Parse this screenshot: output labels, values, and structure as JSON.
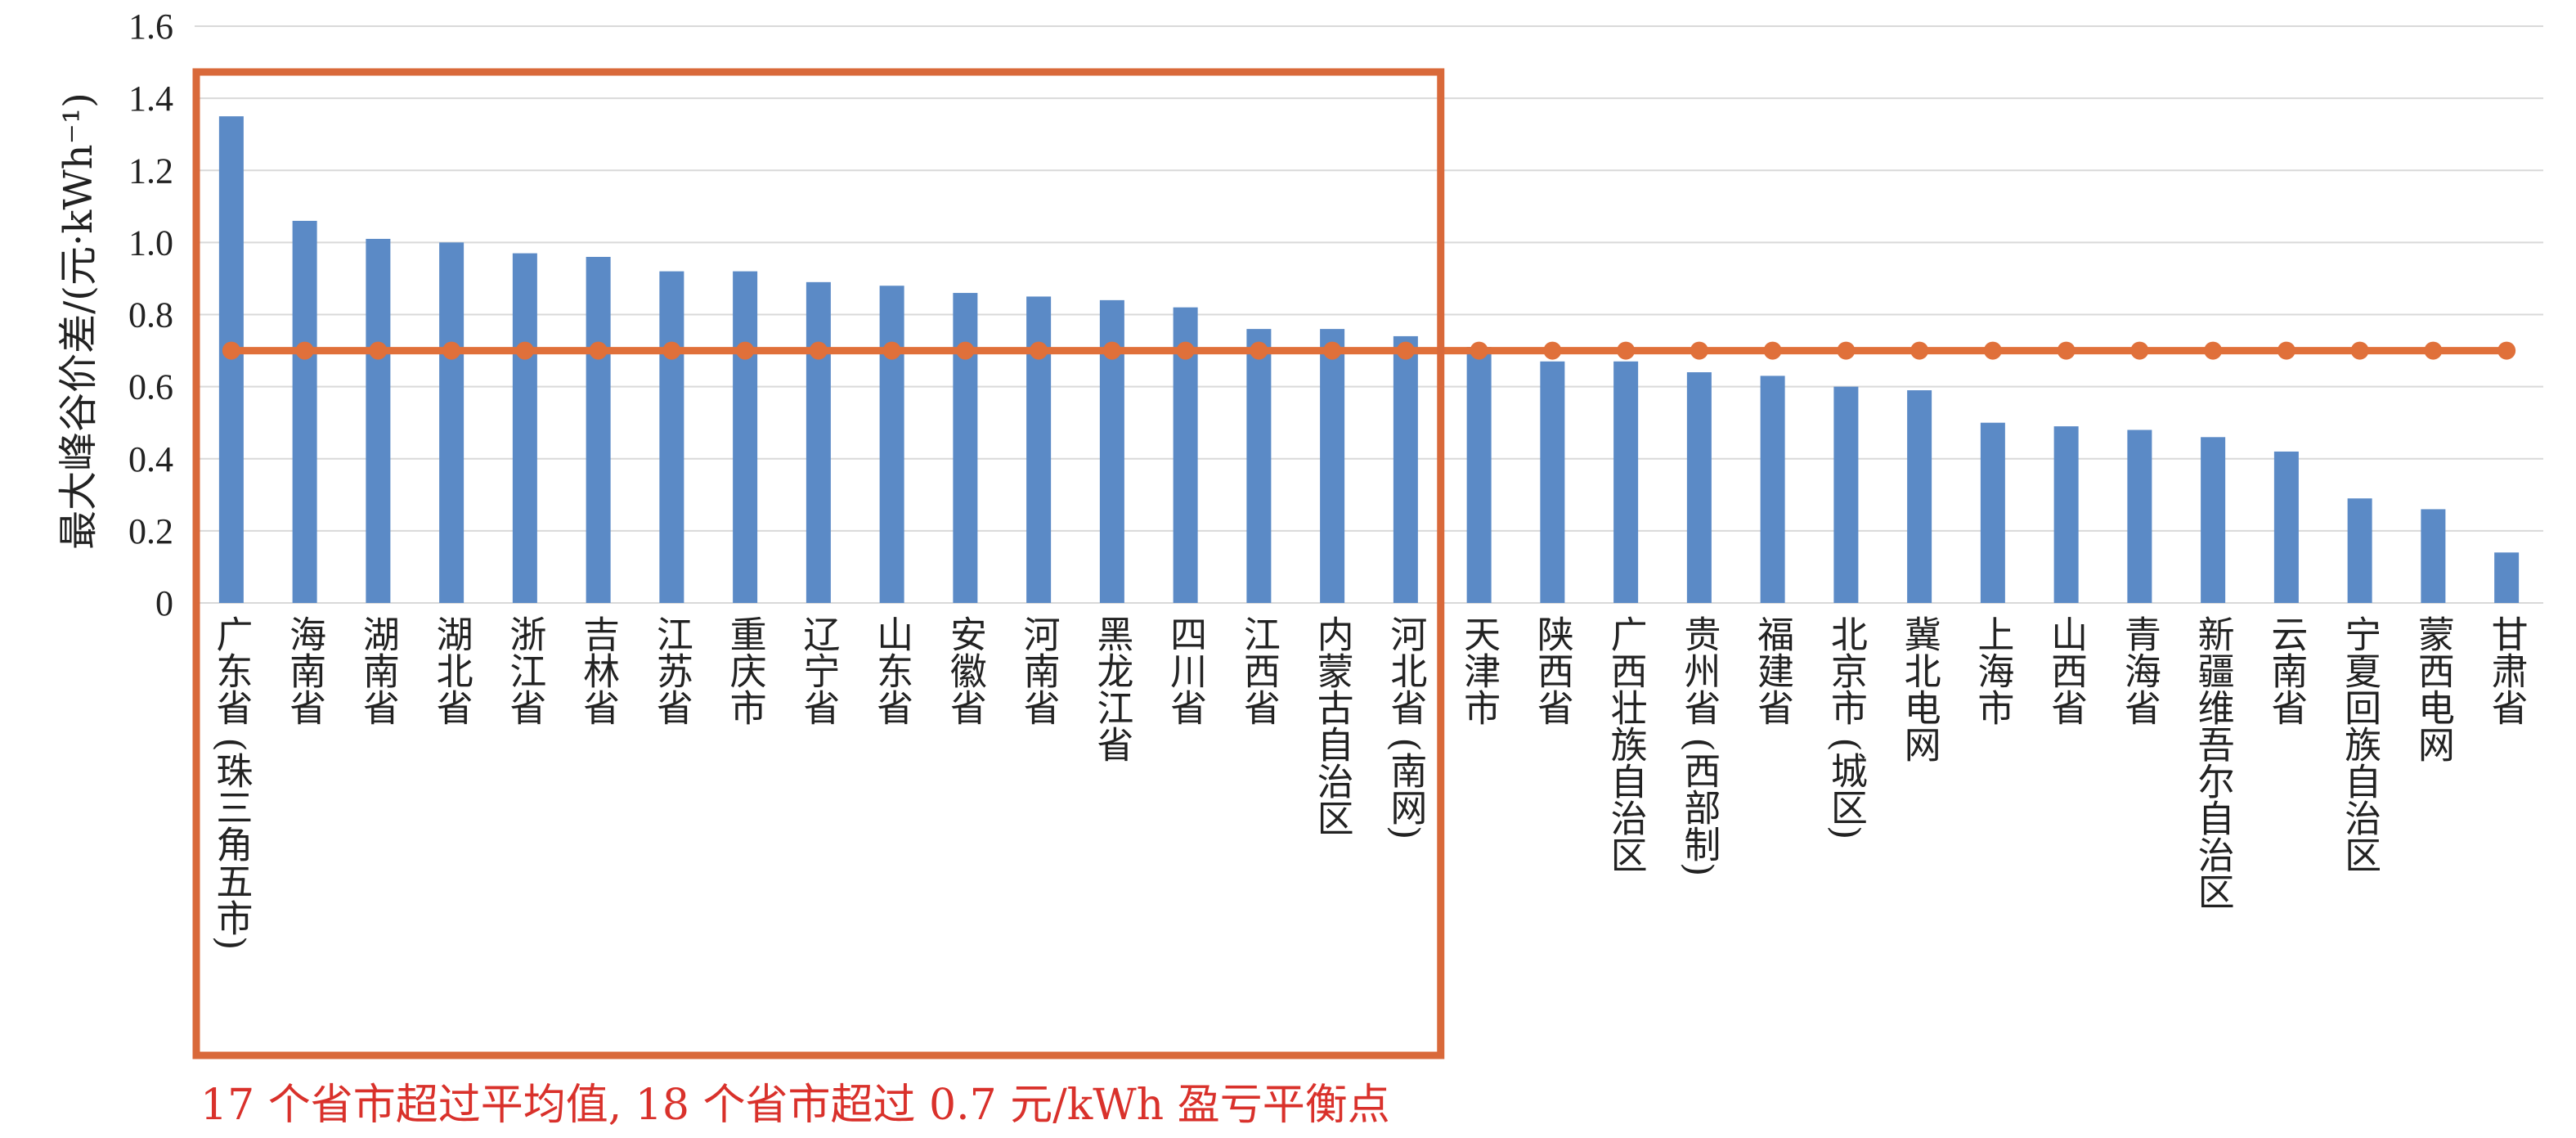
{
  "chart_data": {
    "type": "bar",
    "ylabel": "最大峰谷价差/(元·kWh⁻¹)",
    "ylim": [
      0,
      1.6
    ],
    "yticks": [
      "0",
      "0.2",
      "0.4",
      "0.6",
      "0.8",
      "1.0",
      "1.2",
      "1.4",
      "1.6"
    ],
    "grid": true,
    "categories": [
      "广东省 (珠三角五市)",
      "海南省",
      "湖南省",
      "湖北省",
      "浙江省",
      "吉林省",
      "江苏省",
      "重庆市",
      "辽宁省",
      "山东省",
      "安徽省",
      "河南省",
      "黑龙江省",
      "四川省",
      "江西省",
      "内蒙古自治区",
      "河北省 (南网)",
      "天津市",
      "陕西省",
      "广西壮族自治区",
      "贵州省 (西部制)",
      "福建省",
      "北京市 (城区)",
      "冀北电网",
      "上海市",
      "山西省",
      "青海省",
      "新疆维吾尔自治区",
      "云南省",
      "宁夏回族自治区",
      "蒙西电网",
      "甘肃省"
    ],
    "values": [
      1.35,
      1.06,
      1.01,
      1.0,
      0.97,
      0.96,
      0.92,
      0.92,
      0.89,
      0.88,
      0.86,
      0.85,
      0.84,
      0.82,
      0.76,
      0.76,
      0.74,
      0.71,
      0.67,
      0.67,
      0.64,
      0.63,
      0.6,
      0.59,
      0.5,
      0.49,
      0.48,
      0.46,
      0.42,
      0.29,
      0.26,
      0.14
    ],
    "reference_line": {
      "value": 0.7
    },
    "highlight_box_count": 17,
    "colors": {
      "bar": "#5b8ac6",
      "line": "#e0703a",
      "box": "#d9693a",
      "note": "#d9312b",
      "grid": "#d9d9d9"
    },
    "annotation": "17 个省市超过平均值, 18 个省市超过 0.7 元/kWh 盈亏平衡点"
  }
}
